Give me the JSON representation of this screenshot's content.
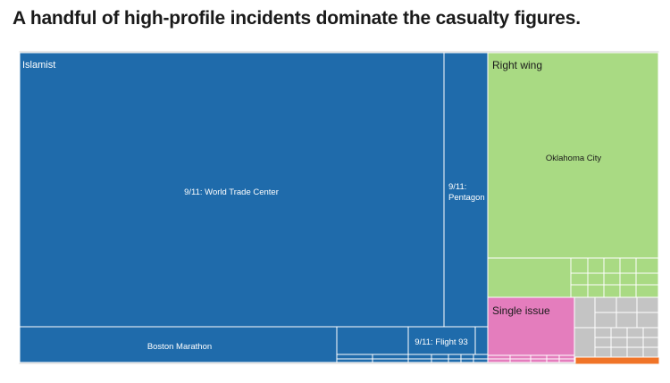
{
  "page": {
    "headline": "A handful of high-profile incidents dominate the casualty figures."
  },
  "chart_data": {
    "type": "treemap",
    "measure": "casualties",
    "colors": {
      "Islamist": "#1f6bab",
      "Right wing": "#a9da83",
      "Single issue": "#e47dbd",
      "Other": "#c4c4c4",
      "Left wing": "#f07428"
    },
    "groups": [
      {
        "name": "Islamist",
        "label": "Islamist",
        "incidents": [
          {
            "label": "9/11: World Trade Center"
          },
          {
            "label": "9/11: Pentagon"
          },
          {
            "label": "Boston Marathon"
          },
          {
            "label": "9/11: Flight 93"
          }
        ]
      },
      {
        "name": "Right wing",
        "label": "Right wing",
        "incidents": [
          {
            "label": "Oklahoma City"
          }
        ]
      },
      {
        "name": "Single issue",
        "label": "Single issue",
        "incidents": []
      },
      {
        "name": "Other",
        "label": "",
        "incidents": []
      },
      {
        "name": "Left wing",
        "label": "",
        "incidents": []
      }
    ]
  }
}
